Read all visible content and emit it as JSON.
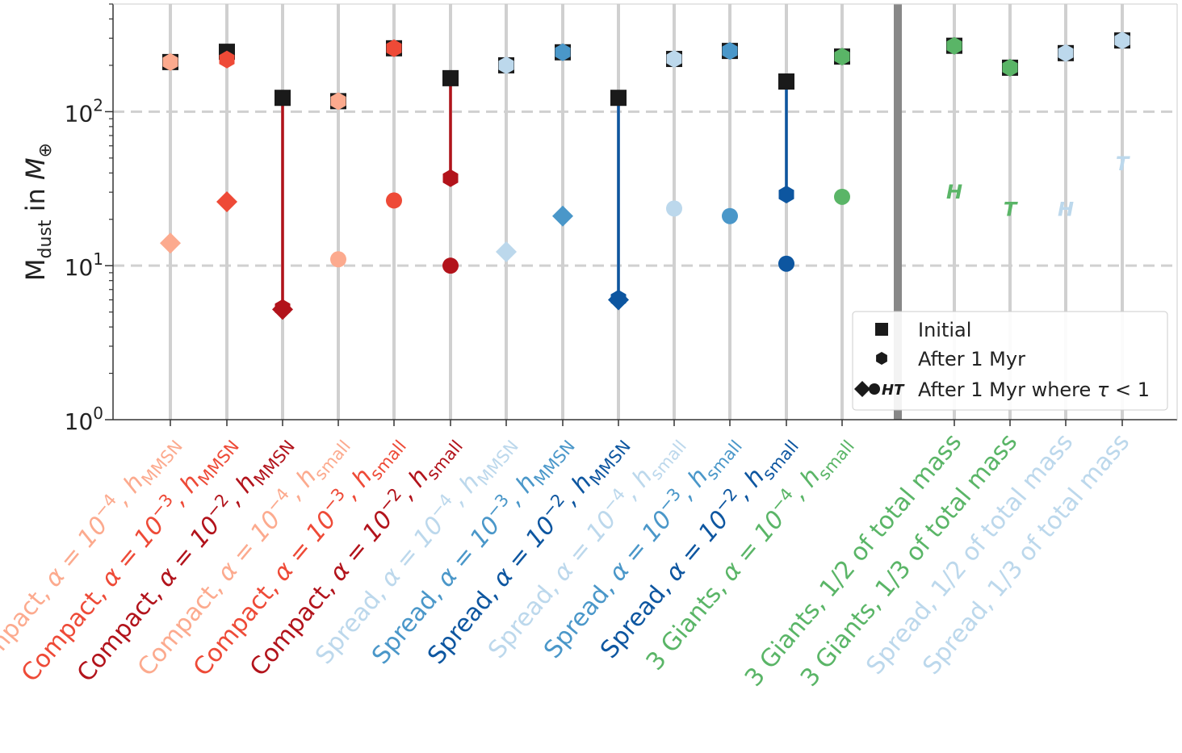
{
  "chart_data": {
    "type": "scatter",
    "yscale": "log",
    "ylim": [
      1,
      500
    ],
    "ylabel": "M_dust in M_⊕",
    "ylabel_parts": {
      "main": "M",
      "sub": "dust",
      "mid": " in ",
      "italic": "M",
      "italic_sub": "⊕"
    },
    "yticks": [
      {
        "value": 1,
        "base": "10",
        "exp": "0"
      },
      {
        "value": 10,
        "base": "10",
        "exp": "1"
      },
      {
        "value": 100,
        "base": "10",
        "exp": "2"
      }
    ],
    "grid_y": [
      10,
      100
    ],
    "colors": {
      "light_red": "#fcaa8e",
      "mid_red": "#ee4a37",
      "dark_red": "#b2131b",
      "light_blue": "#bcd8ec",
      "mid_blue": "#4a97c9",
      "dark_blue": "#0d56a0",
      "green": "#5ab567",
      "initial": "#1a1a1a",
      "gridline": "#d0d0d0",
      "divider": "#888888"
    },
    "categories": [
      {
        "label_main": "Compact, ",
        "label_math": "α = 10",
        "label_exp": "−4",
        "label_h": ", h",
        "label_hsub": "MMSN",
        "color": "#fcaa8e",
        "initial": 210,
        "after_1myr": 210,
        "tau_marker": "diamond",
        "tau_value": 14,
        "line": false
      },
      {
        "label_main": "Compact, ",
        "label_math": "α = 10",
        "label_exp": "−3",
        "label_h": ", h",
        "label_hsub": "MMSN",
        "color": "#ee4a37",
        "initial": 245,
        "after_1myr": 218,
        "tau_marker": "diamond",
        "tau_value": 26,
        "line": false
      },
      {
        "label_main": "Compact, ",
        "label_math": "α = 10",
        "label_exp": "−2",
        "label_h": ", h",
        "label_hsub": "MMSN",
        "color": "#b2131b",
        "initial": 123,
        "after_1myr": 5.3,
        "tau_marker": "diamond",
        "tau_value": 5.2,
        "line": true
      },
      {
        "label_main": "Compact, ",
        "label_math": "α = 10",
        "label_exp": "−4",
        "label_h": ", h",
        "label_hsub": "small",
        "color": "#fcaa8e",
        "initial": 117,
        "after_1myr": 117,
        "tau_marker": "circle",
        "tau_value": 11,
        "line": false
      },
      {
        "label_main": "Compact, ",
        "label_math": "α = 10",
        "label_exp": "−3",
        "label_h": ", h",
        "label_hsub": "small",
        "color": "#ee4a37",
        "initial": 258,
        "after_1myr": 258,
        "tau_marker": "circle",
        "tau_value": 26.5,
        "line": false
      },
      {
        "label_main": "Compact, ",
        "label_math": "α = 10",
        "label_exp": "−2",
        "label_h": ", h",
        "label_hsub": "small",
        "color": "#b2131b",
        "initial": 165,
        "after_1myr": 37,
        "tau_marker": "circle",
        "tau_value": 10,
        "line": true
      },
      {
        "label_main": "Spread, ",
        "label_math": "α = 10",
        "label_exp": "−4",
        "label_h": ", h",
        "label_hsub": "MMSN",
        "color": "#bcd8ec",
        "initial": 200,
        "after_1myr": 200,
        "tau_marker": "diamond",
        "tau_value": 12.3,
        "line": false
      },
      {
        "label_main": "Spread, ",
        "label_math": "α = 10",
        "label_exp": "−3",
        "label_h": ", h",
        "label_hsub": "MMSN",
        "color": "#4a97c9",
        "initial": 243,
        "after_1myr": 243,
        "tau_marker": "diamond",
        "tau_value": 21,
        "line": false
      },
      {
        "label_main": "Spread, ",
        "label_math": "α = 10",
        "label_exp": "−2",
        "label_h": ", h",
        "label_hsub": "MMSN",
        "color": "#0d56a0",
        "initial": 123,
        "after_1myr": 6.1,
        "tau_marker": "diamond",
        "tau_value": 6.0,
        "line": true
      },
      {
        "label_main": "Spread, ",
        "label_math": "α = 10",
        "label_exp": "−4",
        "label_h": ", h",
        "label_hsub": "small",
        "color": "#bcd8ec",
        "initial": 220,
        "after_1myr": 220,
        "tau_marker": "circle",
        "tau_value": 23.5,
        "line": false
      },
      {
        "label_main": "Spread, ",
        "label_math": "α = 10",
        "label_exp": "−3",
        "label_h": ", h",
        "label_hsub": "small",
        "color": "#4a97c9",
        "initial": 248,
        "after_1myr": 248,
        "tau_marker": "circle",
        "tau_value": 21,
        "line": false
      },
      {
        "label_main": "Spread, ",
        "label_math": "α = 10",
        "label_exp": "−2",
        "label_h": ", h",
        "label_hsub": "small",
        "color": "#0d56a0",
        "initial": 157,
        "after_1myr": 29,
        "tau_marker": "circle",
        "tau_value": 10.3,
        "line": true
      },
      {
        "label_main": "3 Giants, ",
        "label_math": "α = 10",
        "label_exp": "−4",
        "label_h": ", h",
        "label_hsub": "small",
        "color": "#5ab567",
        "initial": 228,
        "after_1myr": 228,
        "tau_marker": "circle",
        "tau_value": 28,
        "line": false
      },
      {
        "label_main": "3 Giants, 1/2 of total mass",
        "color": "#5ab567",
        "initial": 268,
        "after_1myr": 268,
        "tau_marker": "letter",
        "tau_letter": "H",
        "tau_value": 30.5,
        "line": false,
        "plain": true
      },
      {
        "label_main": "3 Giants, 1/3 of total mass",
        "color": "#5ab567",
        "initial": 193,
        "after_1myr": 193,
        "tau_marker": "letter",
        "tau_letter": "T",
        "tau_value": 23.5,
        "line": false,
        "plain": true
      },
      {
        "label_main": "Spread, 1/2 of total mass",
        "color": "#bcd8ec",
        "initial": 240,
        "after_1myr": 240,
        "tau_marker": "letter",
        "tau_letter": "H",
        "tau_value": 23.5,
        "line": false,
        "plain": true
      },
      {
        "label_main": "Spread, 1/3 of total mass",
        "color": "#bcd8ec",
        "initial": 290,
        "after_1myr": 290,
        "tau_marker": "letter",
        "tau_letter": "T",
        "tau_value": 46.5,
        "line": false,
        "plain": true
      }
    ],
    "divider_after_index": 12,
    "legend": {
      "position": "lower-right",
      "entries": [
        {
          "marker": "square",
          "label": "Initial"
        },
        {
          "marker": "hexagon",
          "label": "After 1 Myr"
        },
        {
          "marker": "diamond-circle-HT",
          "marker_text": "HT",
          "label_text": "After 1 Myr where ",
          "label_math": "τ",
          "label_end": " < 1"
        }
      ]
    }
  }
}
